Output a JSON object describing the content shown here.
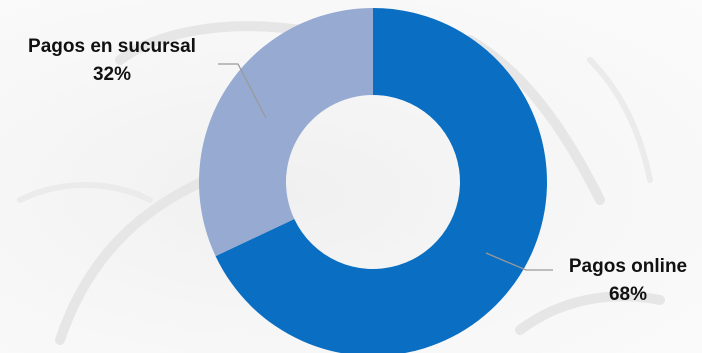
{
  "chart_data": {
    "type": "pie",
    "variant": "donut",
    "start": "12 o'clock, clockwise",
    "slices": [
      {
        "label": "Pagos online",
        "value": 68,
        "value_label": "68%",
        "color": "#0a6fc2"
      },
      {
        "label": "Pagos en sucursal",
        "value": 32,
        "value_label": "32%",
        "color": "#96aad2"
      }
    ],
    "legend": "none",
    "data_labels": "outside with leader lines"
  },
  "colors": {
    "background": "#f6f6f6",
    "leader_line": "#9a9a9a",
    "label_text": "#111111"
  }
}
